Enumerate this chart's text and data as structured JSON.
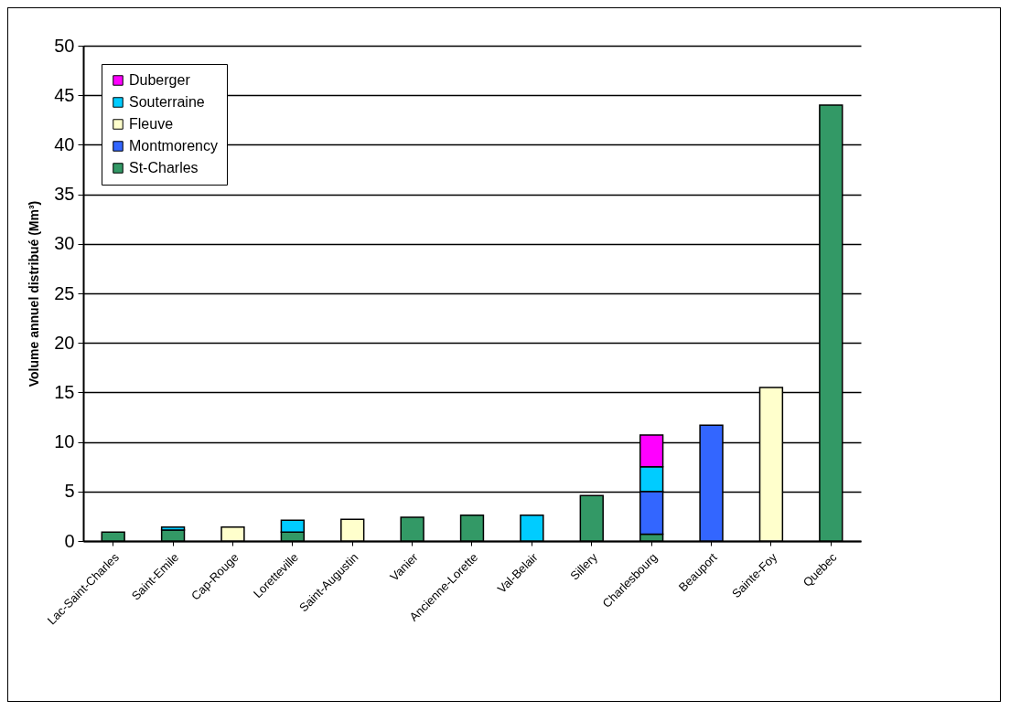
{
  "chart_data": {
    "type": "bar",
    "stacked": true,
    "ylabel": "Volume annuel distribué (Mm³)",
    "categories": [
      "Lac-Saint-Charles",
      "Saint-Emile",
      "Cap-Rouge",
      "Loretteville",
      "Saint-Augustin",
      "Vanier",
      "Ancienne-Lorette",
      "Val-Belair",
      "Sillery",
      "Charlesbourg",
      "Beauport",
      "Sainte-Foy",
      "Quebec"
    ],
    "series": [
      {
        "name": "St-Charles",
        "color": "#339966",
        "values": [
          0.9,
          1.1,
          null,
          0.9,
          null,
          2.4,
          2.6,
          null,
          4.6,
          0.7,
          null,
          null,
          44
        ]
      },
      {
        "name": "Montmorency",
        "color": "#3366ff",
        "values": [
          null,
          null,
          null,
          null,
          null,
          null,
          null,
          null,
          null,
          4.3,
          11.7,
          null,
          null
        ]
      },
      {
        "name": "Fleuve",
        "color": "#ffffcc",
        "values": [
          null,
          null,
          1.4,
          null,
          2.2,
          null,
          null,
          null,
          null,
          null,
          null,
          15.5,
          null
        ]
      },
      {
        "name": "Souterraine",
        "color": "#00ccff",
        "values": [
          null,
          0.3,
          null,
          1.2,
          null,
          null,
          null,
          2.6,
          null,
          2.5,
          null,
          null,
          null
        ]
      },
      {
        "name": "Duberger",
        "color": "#ff00ff",
        "values": [
          null,
          null,
          null,
          null,
          null,
          null,
          null,
          null,
          null,
          3.2,
          null,
          null,
          null
        ]
      }
    ],
    "ylim": [
      0,
      50
    ],
    "yticks": [
      0,
      5,
      10,
      15,
      20,
      25,
      30,
      35,
      40,
      45,
      50
    ],
    "grid": "y",
    "legend": "top left"
  }
}
